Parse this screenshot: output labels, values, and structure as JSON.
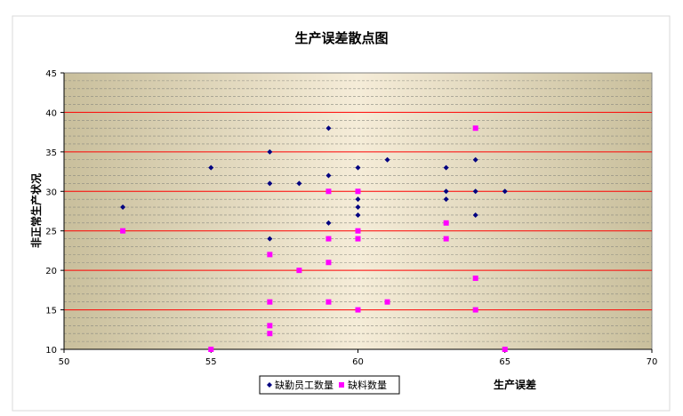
{
  "chart_data": {
    "type": "scatter",
    "title": "生产误差散点图",
    "xlabel": "生产误差",
    "ylabel": "非正常生产状况",
    "xlim": [
      50,
      70
    ],
    "ylim": [
      10,
      45
    ],
    "x_ticks": [
      50,
      55,
      60,
      65,
      70
    ],
    "y_ticks": [
      10,
      15,
      20,
      25,
      30,
      35,
      40,
      45
    ],
    "grid": true,
    "legend_position": "bottom",
    "series": [
      {
        "name": "缺勤员工数量",
        "marker": "diamond",
        "color": "#000080",
        "points": [
          [
            52,
            28
          ],
          [
            55,
            33
          ],
          [
            57,
            35
          ],
          [
            57,
            31
          ],
          [
            57,
            24
          ],
          [
            58,
            31
          ],
          [
            59,
            38
          ],
          [
            59,
            32
          ],
          [
            59,
            26
          ],
          [
            59,
            24
          ],
          [
            60,
            33
          ],
          [
            60,
            29
          ],
          [
            60,
            28
          ],
          [
            60,
            27
          ],
          [
            61,
            34
          ],
          [
            63,
            33
          ],
          [
            63,
            30
          ],
          [
            63,
            29
          ],
          [
            64,
            34
          ],
          [
            64,
            30
          ],
          [
            64,
            27
          ],
          [
            65,
            30
          ]
        ]
      },
      {
        "name": "缺料数量",
        "marker": "square",
        "color": "#ff00ff",
        "points": [
          [
            52,
            25
          ],
          [
            55,
            10
          ],
          [
            57,
            22
          ],
          [
            57,
            16
          ],
          [
            57,
            13
          ],
          [
            57,
            12
          ],
          [
            58,
            20
          ],
          [
            59,
            30
          ],
          [
            59,
            24
          ],
          [
            59,
            21
          ],
          [
            59,
            16
          ],
          [
            60,
            30
          ],
          [
            60,
            25
          ],
          [
            60,
            24
          ],
          [
            60,
            15
          ],
          [
            61,
            16
          ],
          [
            63,
            26
          ],
          [
            63,
            24
          ],
          [
            64,
            38
          ],
          [
            64,
            19
          ],
          [
            64,
            15
          ],
          [
            65,
            10
          ]
        ]
      }
    ]
  }
}
